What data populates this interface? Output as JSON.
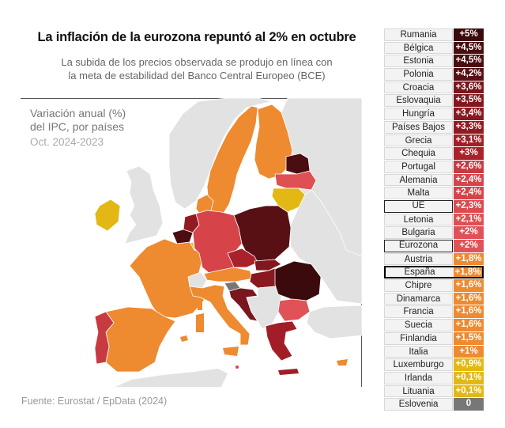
{
  "title": "La inflación de la eurozona repuntó al 2% en octubre",
  "subtitle_line1": "La subida de los precios observada se produjo en línea con",
  "subtitle_line2": "la meta de estabilidad del Banco Central Europeo (BCE)",
  "legend": {
    "line1": "Variación anual (%)",
    "line2": "del IPC, por países",
    "line3": "Oct. 2024-2023"
  },
  "source": "Fuente: Eurostat / EpData (2024)",
  "colors": {
    "darkest": "#3b0a0c",
    "dark": "#6b1419",
    "darkred": "#8e1a22",
    "red": "#c0343d",
    "lightred": "#e05257",
    "orange": "#ee8a30",
    "yellow": "#e3b814",
    "gray": "#777777",
    "nodata": "#e2e2e2",
    "sea": "#ffffff"
  },
  "rows": [
    {
      "country": "Rumania",
      "value": "+5%",
      "color": "#3b0a0c"
    },
    {
      "country": "Bélgica",
      "value": "+4,5%",
      "color": "#4a0d10"
    },
    {
      "country": "Estonia",
      "value": "+4,5%",
      "color": "#4a0d10"
    },
    {
      "country": "Polonia",
      "value": "+4,2%",
      "color": "#581015"
    },
    {
      "country": "Croacia",
      "value": "+3,6%",
      "color": "#7a161d"
    },
    {
      "country": "Eslovaquia",
      "value": "+3,5%",
      "color": "#82171f"
    },
    {
      "country": "Hungría",
      "value": "+3,4%",
      "color": "#8a1820"
    },
    {
      "country": "Países Bajos",
      "value": "+3,3%",
      "color": "#921a23"
    },
    {
      "country": "Grecia",
      "value": "+3,1%",
      "color": "#a11e28"
    },
    {
      "country": "Chequia",
      "value": "+3%",
      "color": "#a8212b"
    },
    {
      "country": "Portugal",
      "value": "+2,6%",
      "color": "#c83a42"
    },
    {
      "country": "Alemania",
      "value": "+2,4%",
      "color": "#d64449"
    },
    {
      "country": "Malta",
      "value": "+2,4%",
      "color": "#d64449"
    },
    {
      "country": "UE",
      "value": "+2,3%",
      "color": "#da4a4e"
    },
    {
      "country": "Letonia",
      "value": "+2,1%",
      "color": "#de5053"
    },
    {
      "country": "Bulgaria",
      "value": "+2%",
      "color": "#e05257"
    },
    {
      "country": "Eurozona",
      "value": "+2%",
      "color": "#e05257"
    },
    {
      "country": "Austria",
      "value": "+1,8%",
      "color": "#ee8a30"
    },
    {
      "country": "España",
      "value": "+1,8%",
      "color": "#ee8a30"
    },
    {
      "country": "Chipre",
      "value": "+1,6%",
      "color": "#ee8a30"
    },
    {
      "country": "Dinamarca",
      "value": "+1,6%",
      "color": "#ee8a30"
    },
    {
      "country": "Francia",
      "value": "+1,6%",
      "color": "#ee8a30"
    },
    {
      "country": "Suecia",
      "value": "+1,6%",
      "color": "#ee8a30"
    },
    {
      "country": "Finlandia",
      "value": "+1,5%",
      "color": "#ee8a30"
    },
    {
      "country": "Italia",
      "value": "+1%",
      "color": "#ee8a30"
    },
    {
      "country": "Luxemburgo",
      "value": "+0,9%",
      "color": "#e3b814"
    },
    {
      "country": "Irlanda",
      "value": "+0,1%",
      "color": "#e3b814"
    },
    {
      "country": "Lituania",
      "value": "+0,1%",
      "color": "#e3b814"
    },
    {
      "country": "Eslovenia",
      "value": "0",
      "color": "#777777"
    }
  ]
}
